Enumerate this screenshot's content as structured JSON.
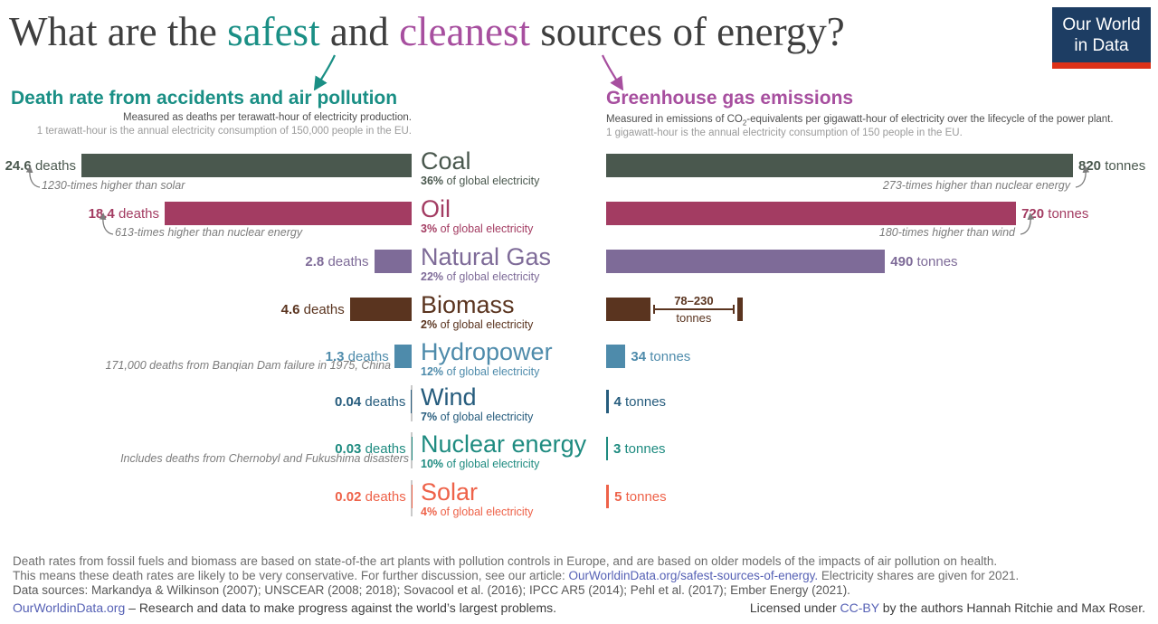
{
  "title": {
    "pre": "What are the ",
    "safest": "safest",
    "and": " and ",
    "cleanest": "cleanest",
    "post": " sources of energy?"
  },
  "logo": {
    "line1": "Our World",
    "line2": "in Data"
  },
  "left_panel": {
    "heading": "Death rate from accidents and air pollution",
    "subtitle1": "Measured as deaths per terawatt-hour of electricity production.",
    "subtitle2": "1 terawatt-hour is the annual electricity consumption of 150,000 people in the EU."
  },
  "right_panel": {
    "heading": "Greenhouse gas emissions",
    "subtitle1_pre": "Measured in emissions of CO",
    "subtitle1_sub": "2",
    "subtitle1_post": "-equivalents per gigawatt-hour of electricity over the lifecycle of the power plant.",
    "subtitle2": "1 gigawatt-hour is the annual electricity consumption of 150 people in the EU."
  },
  "strings": {
    "deaths_unit": "deaths",
    "tonnes_unit": "tonnes",
    "share_suffix": "of global electricity"
  },
  "rows": [
    {
      "name": "Coal",
      "share_pct": "36%",
      "deaths_num": "24.6",
      "deaths_value": 24.6,
      "tonnes_num": "820",
      "tonnes_value": 820,
      "color": "#4a584e"
    },
    {
      "name": "Oil",
      "share_pct": "3%",
      "deaths_num": "18.4",
      "deaths_value": 18.4,
      "tonnes_num": "720",
      "tonnes_value": 720,
      "color": "#a33c62"
    },
    {
      "name": "Natural Gas",
      "share_pct": "22%",
      "deaths_num": "2.8",
      "deaths_value": 2.8,
      "tonnes_num": "490",
      "tonnes_value": 490,
      "color": "#7e6b98"
    },
    {
      "name": "Biomass",
      "share_pct": "2%",
      "deaths_num": "4.6",
      "deaths_value": 4.6,
      "tonnes_num": "78",
      "tonnes_value": 78,
      "range_min": 78,
      "range_max": 230,
      "color": "#5a341f"
    },
    {
      "name": "Hydropower",
      "share_pct": "12%",
      "deaths_num": "1.3",
      "deaths_value": 1.3,
      "tonnes_num": "34",
      "tonnes_value": 34,
      "color": "#4e8bab"
    },
    {
      "name": "Wind",
      "share_pct": "7%",
      "deaths_num": "0.04",
      "deaths_value": 0.04,
      "tonnes_num": "4",
      "tonnes_value": 4,
      "color": "#265c7d"
    },
    {
      "name": "Nuclear energy",
      "share_pct": "10%",
      "deaths_num": "0.03",
      "deaths_value": 0.03,
      "tonnes_num": "3",
      "tonnes_value": 3,
      "color": "#1e8b80"
    },
    {
      "name": "Solar",
      "share_pct": "4%",
      "deaths_num": "0.02",
      "deaths_value": 0.02,
      "tonnes_num": "5",
      "tonnes_value": 5,
      "color": "#ee6249"
    }
  ],
  "biomass_range": {
    "label_top": "78–230",
    "label_bottom": "tonnes"
  },
  "annotations": {
    "coal_left": "1230-times higher than solar",
    "coal_right": "273-times higher than nuclear energy",
    "oil_left": "613-times higher than nuclear energy",
    "oil_right": "180-times higher than wind",
    "hydro_left": "171,000 deaths from Banqian Dam failure in 1975, China",
    "nuclear_left": "Includes deaths from Chernobyl and Fukushima disasters"
  },
  "chart_data": {
    "type": "bar",
    "orientation": "horizontal",
    "title": "What are the safest and cleanest sources of energy?",
    "categories": [
      "Coal",
      "Oil",
      "Natural Gas",
      "Biomass",
      "Hydropower",
      "Wind",
      "Nuclear energy",
      "Solar"
    ],
    "series": [
      {
        "name": "Death rate from accidents and air pollution",
        "unit": "deaths per terawatt-hour of electricity production",
        "values": [
          24.6,
          18.4,
          2.8,
          4.6,
          1.3,
          0.04,
          0.03,
          0.02
        ]
      },
      {
        "name": "Greenhouse gas emissions",
        "unit": "tonnes of CO2-equivalents per gigawatt-hour of electricity",
        "values": [
          820,
          720,
          490,
          78,
          34,
          4,
          3,
          5
        ],
        "ranges": {
          "Biomass": [
            78,
            230
          ]
        }
      }
    ],
    "electricity_share_2021": {
      "Coal": "36%",
      "Oil": "3%",
      "Natural Gas": "22%",
      "Biomass": "2%",
      "Hydropower": "12%",
      "Wind": "7%",
      "Nuclear energy": "10%",
      "Solar": "4%"
    },
    "annotations": [
      "1230-times higher than solar",
      "613-times higher than nuclear energy",
      "273-times higher than nuclear energy",
      "180-times higher than wind",
      "171,000 deaths from Banqian Dam failure in 1975, China",
      "Includes deaths from Chernobyl and Fukushima disasters"
    ],
    "legend_position": "none",
    "grid": false
  },
  "footer": {
    "line1": "Death rates from fossil fuels and biomass are based on state-of-the art plants with pollution controls in Europe, and are based on older models of the impacts of air pollution on health.",
    "line2_pre": "This means these death rates are likely to be very conservative. For further discussion, see our article: ",
    "line2_link": "OurWorldinData.org/safest-sources-of-energy.",
    "line2_post": " Electricity shares are given for 2021.",
    "line3": "Data sources: Markandya & Wilkinson (2007); UNSCEAR (2008; 2018); Sovacool et al. (2016); IPCC AR5 (2014); Pehl et al. (2017); Ember Energy (2021).",
    "line4_link": "OurWorldinData.org",
    "line4_text": " – Research and data to make progress against the world’s largest problems.",
    "license_pre": "Licensed under ",
    "license_link": "CC-BY",
    "license_post": " by the authors Hannah Ritchie and Max Roser."
  },
  "theme": {
    "teal": "#1a8f85",
    "purple": "#a74f9f",
    "title_gray": "#3f3f3f",
    "subtitle_dark": "#4f4f4f",
    "subtitle_light": "#9b9b9b",
    "annotation_gray": "#7c7c7c",
    "axis_tick_gray": "#c9c9c9",
    "link": "#5661b5",
    "footer_gray": "#6d6d6d",
    "footer_dark": "#3e3e3e",
    "logo_bg": "#1d3d63",
    "logo_red": "#dd3118"
  }
}
